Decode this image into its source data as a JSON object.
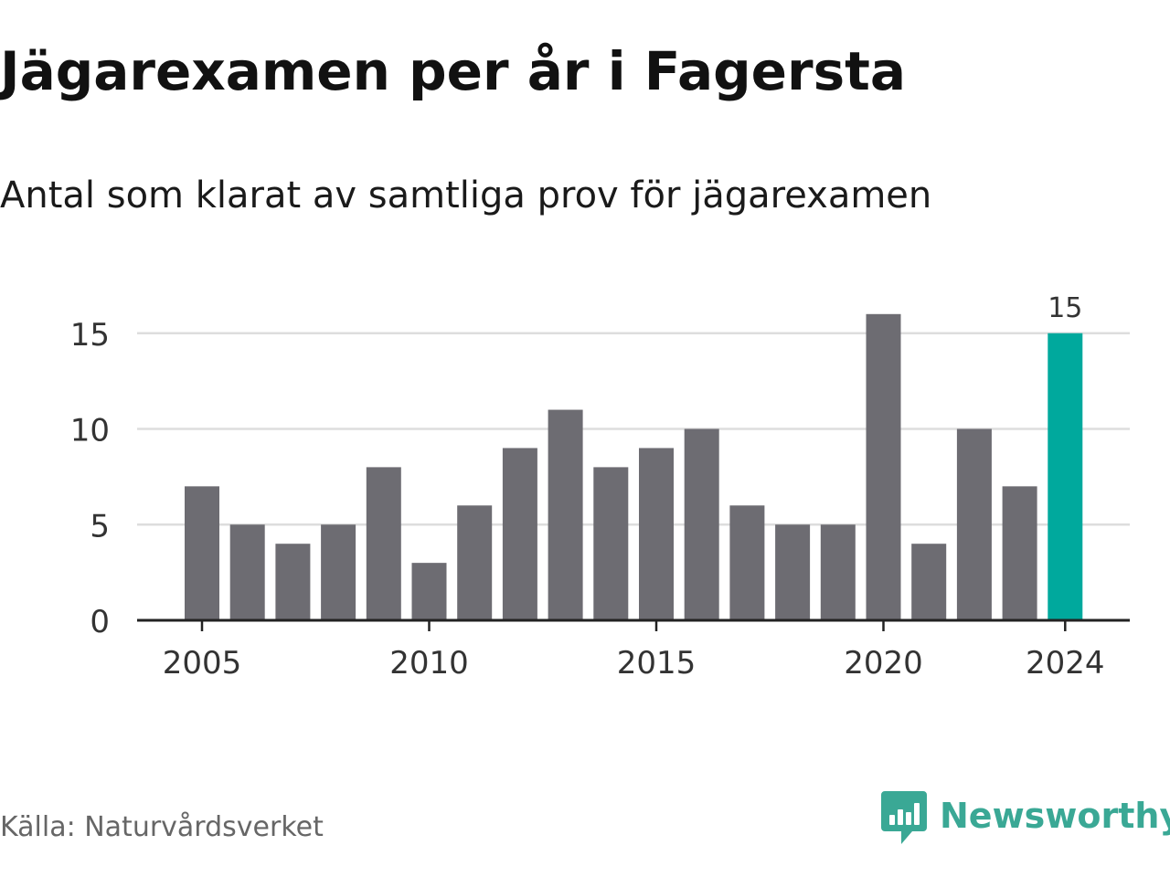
{
  "title": "Jägarexamen per år i Fagersta",
  "subtitle": "Antal som klarat av samtliga prov för jägarexamen",
  "source": "Källa: Naturvårdsverket",
  "brand": {
    "name": "Newsworthy",
    "logo_icon": "newsworthy-bar-chart-bubble-icon",
    "color": "#3aa895"
  },
  "colors": {
    "bar_default": "#6d6c72",
    "bar_highlight": "#00a99d",
    "gridline": "#dddddd",
    "axis": "#222222"
  },
  "chart_data": {
    "type": "bar",
    "title": "Jägarexamen per år i Fagersta",
    "subtitle": "Antal som klarat av samtliga prov för jägarexamen",
    "categories": [
      "2005",
      "2006",
      "2007",
      "2008",
      "2009",
      "2010",
      "2011",
      "2012",
      "2013",
      "2014",
      "2015",
      "2016",
      "2017",
      "2018",
      "2019",
      "2020",
      "2021",
      "2022",
      "2023",
      "2024"
    ],
    "values": [
      7,
      5,
      4,
      5,
      8,
      3,
      6,
      9,
      11,
      8,
      9,
      10,
      6,
      5,
      5,
      16,
      4,
      10,
      7,
      15
    ],
    "highlight_category": "2024",
    "data_labels": [
      {
        "category": "2024",
        "text": "15"
      }
    ],
    "x_tick_labels": [
      "2005",
      "2010",
      "2015",
      "2020",
      "2024"
    ],
    "y_ticks": [
      0,
      5,
      10,
      15
    ],
    "ylim": [
      0,
      17
    ],
    "grid": true,
    "legend": "none"
  }
}
